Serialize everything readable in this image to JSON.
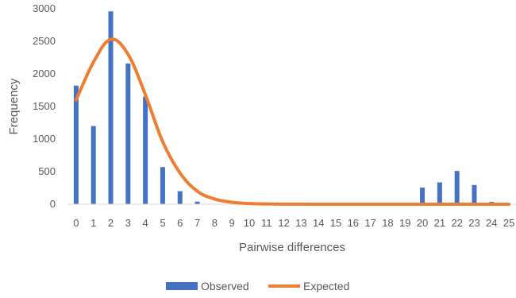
{
  "chart_data": {
    "type": "bar",
    "title": "",
    "xlabel": "Pairwise differences",
    "ylabel": "Frequency",
    "ylim": [
      0,
      3000
    ],
    "yticks": [
      "0",
      "500",
      "1000",
      "1500",
      "2000",
      "2500",
      "3000"
    ],
    "grid": false,
    "legend_position": "bottom",
    "categories": [
      "0",
      "1",
      "2",
      "3",
      "4",
      "5",
      "6",
      "7",
      "8",
      "9",
      "10",
      "11",
      "12",
      "13",
      "14",
      "15",
      "16",
      "17",
      "18",
      "19",
      "20",
      "21",
      "22",
      "23",
      "24",
      "25"
    ],
    "series": [
      {
        "name": "Observed",
        "type": "bar",
        "color": "#4472C4",
        "values": [
          1820,
          1200,
          2960,
          2160,
          1650,
          570,
          200,
          40,
          5,
          2,
          0,
          0,
          0,
          0,
          0,
          0,
          0,
          0,
          0,
          0,
          255,
          335,
          510,
          295,
          35,
          5
        ]
      },
      {
        "name": "Expected",
        "type": "line",
        "color": "#ED7D31",
        "values": [
          1600,
          2180,
          2530,
          2300,
          1680,
          960,
          480,
          200,
          80,
          30,
          10,
          4,
          2,
          1,
          0,
          0,
          0,
          0,
          0,
          0,
          0,
          0,
          0,
          0,
          0,
          0
        ]
      }
    ]
  }
}
